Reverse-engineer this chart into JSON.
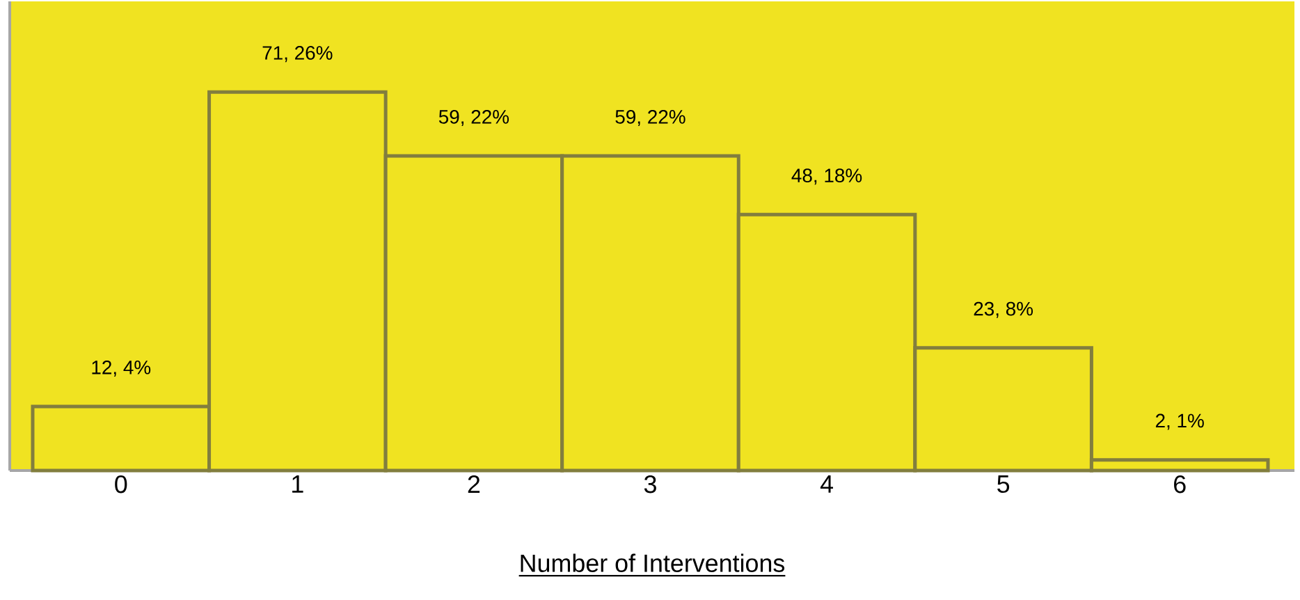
{
  "chart_data": {
    "type": "bar",
    "xlabel": "Number of Interventions",
    "categories": [
      "0",
      "1",
      "2",
      "3",
      "4",
      "5",
      "6"
    ],
    "values": [
      12,
      71,
      59,
      59,
      48,
      23,
      2
    ],
    "value_labels": [
      "12, 4%",
      "71, 26%",
      "59, 22%",
      "59, 22%",
      "48, 18%",
      "23, 8%",
      "2, 1%"
    ],
    "color": "#f0e321",
    "ylim": [
      0,
      88
    ],
    "tick_labels": "x"
  }
}
